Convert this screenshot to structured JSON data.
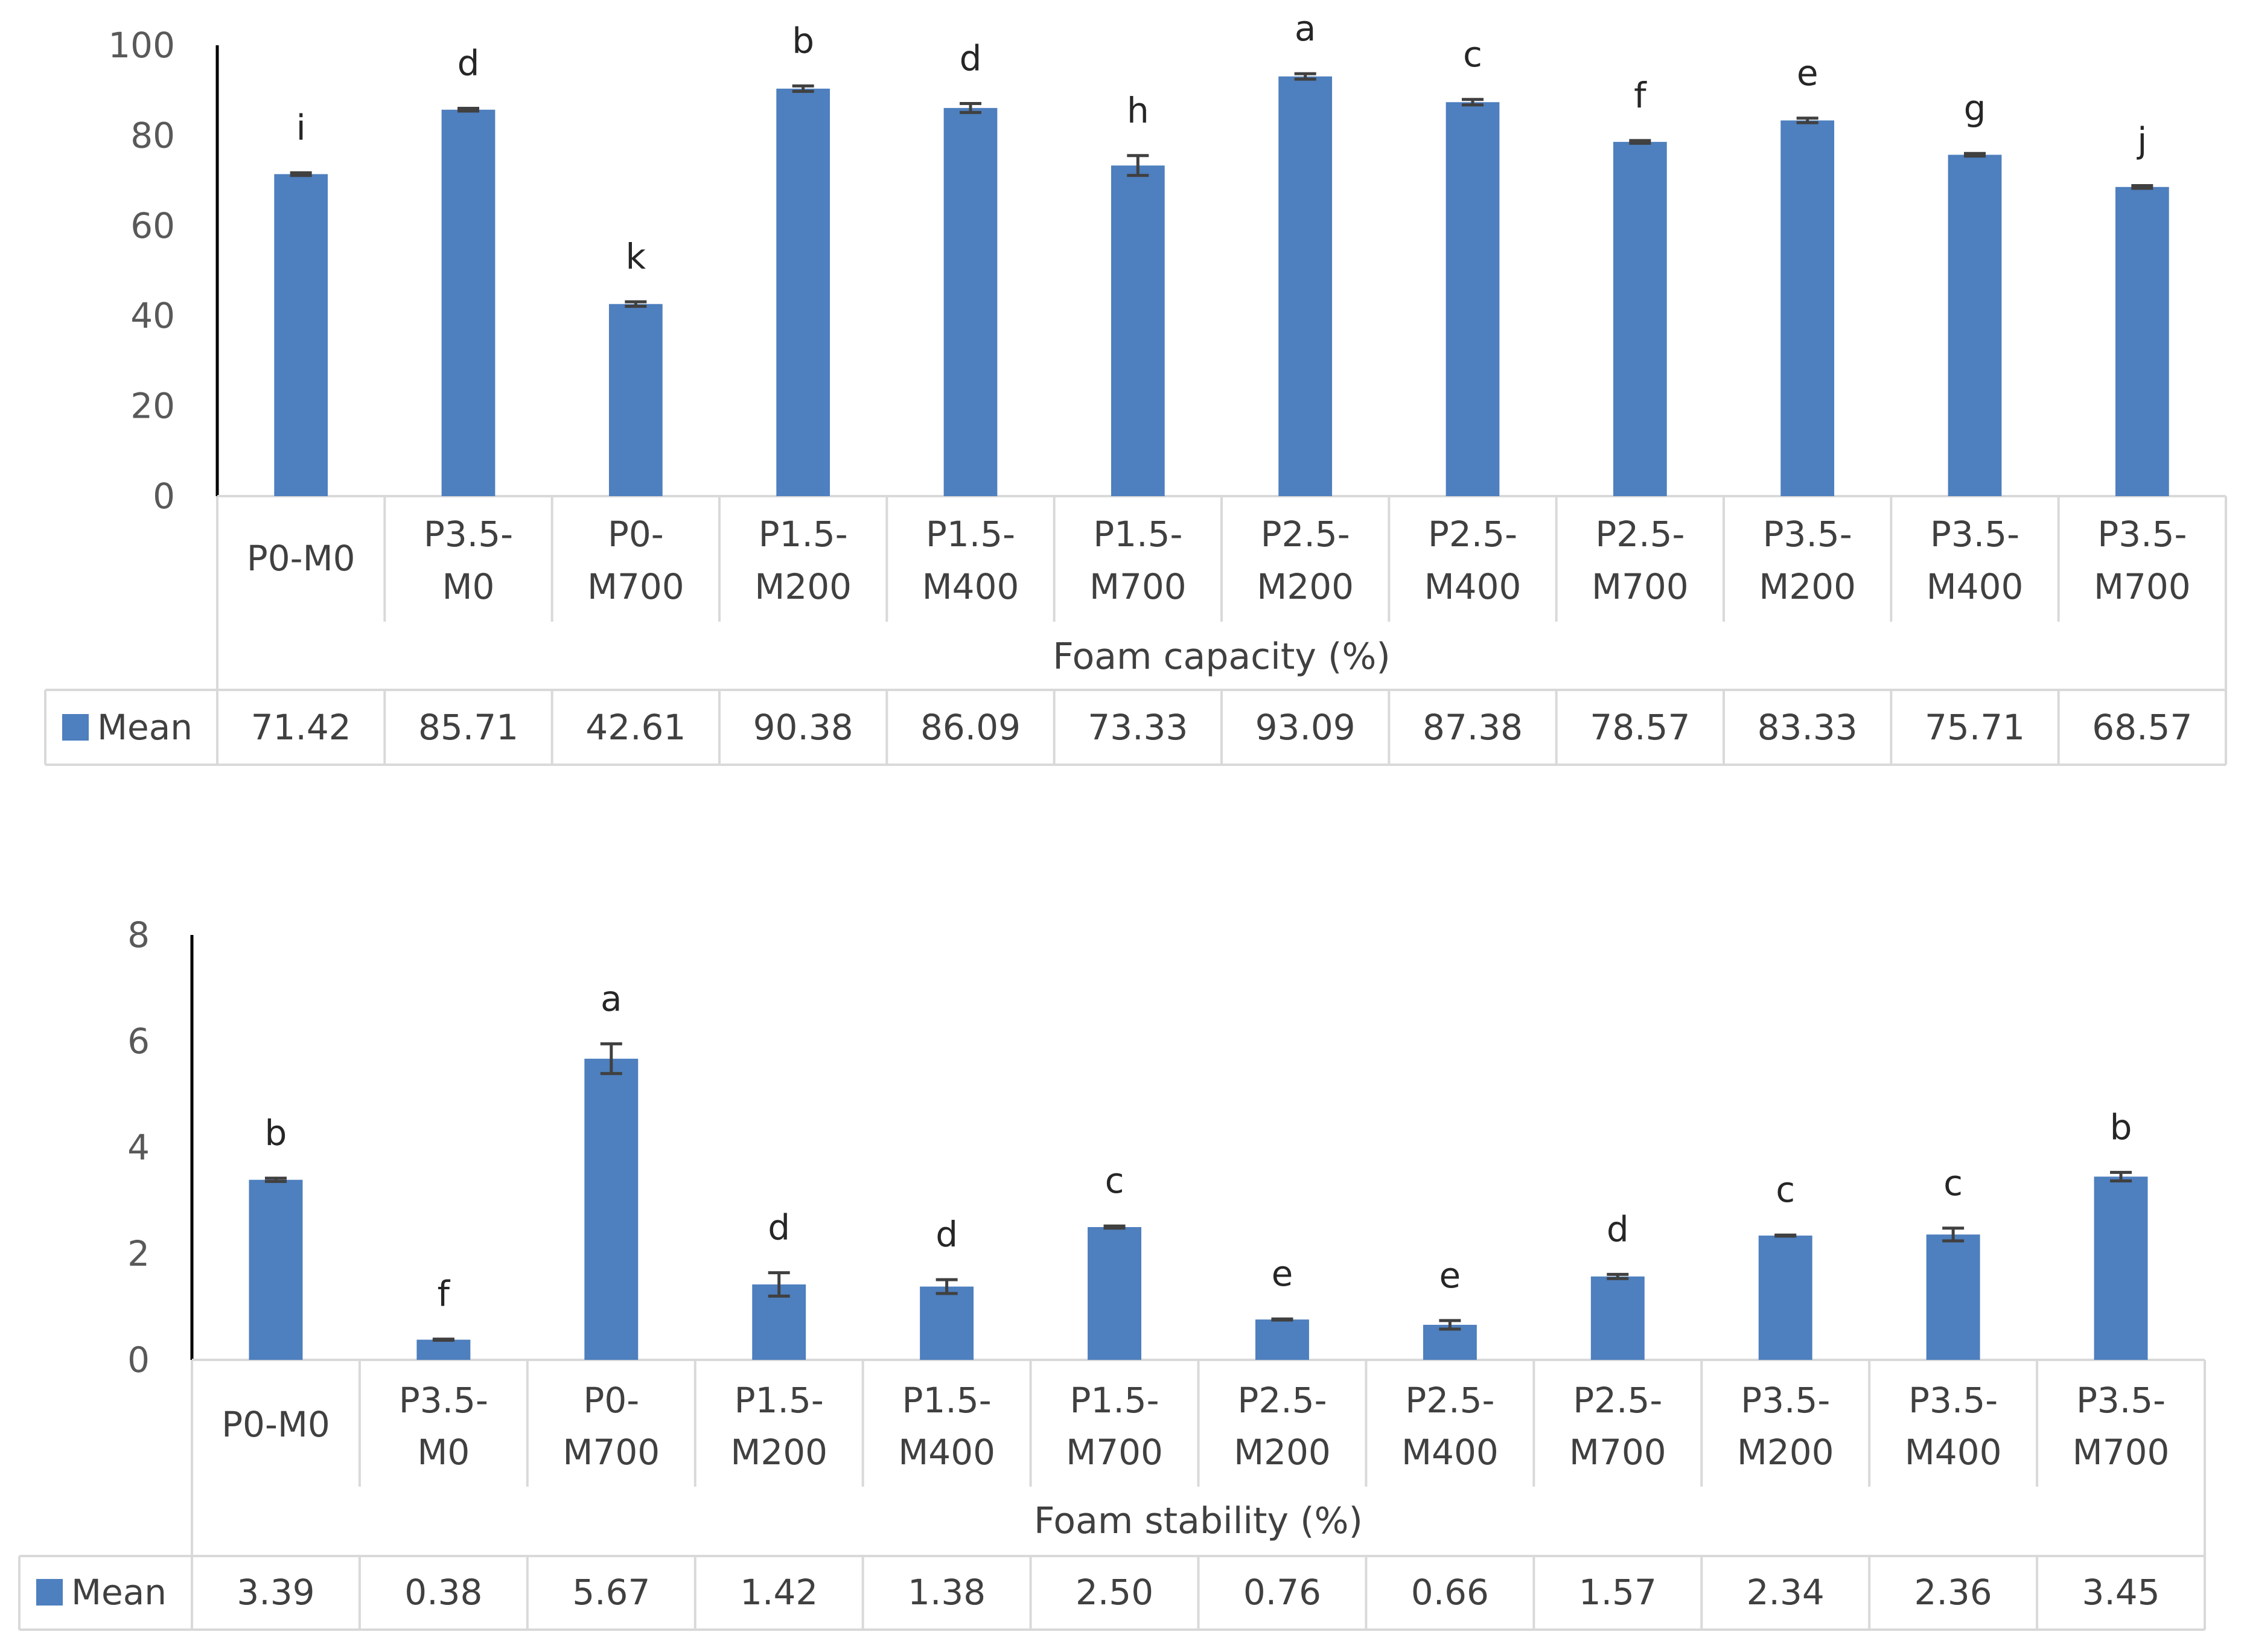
{
  "chart_data": [
    {
      "type": "bar",
      "title": "Foam capacity (%)",
      "xlabel": "Foam capacity (%)",
      "ylabel": "",
      "ylim": [
        0,
        100
      ],
      "yticks": [
        0,
        20,
        40,
        60,
        80,
        100
      ],
      "categories": [
        [
          "P0-M0"
        ],
        [
          "P3.5-",
          "M0"
        ],
        [
          "P0-",
          "M700"
        ],
        [
          "P1.5-",
          "M200"
        ],
        [
          "P1.5-",
          "M400"
        ],
        [
          "P1.5-",
          "M700"
        ],
        [
          "P2.5-",
          "M200"
        ],
        [
          "P2.5-",
          "M400"
        ],
        [
          "P2.5-",
          "M700"
        ],
        [
          "P3.5-",
          "M200"
        ],
        [
          "P3.5-",
          "M400"
        ],
        [
          "P3.5-",
          "M700"
        ]
      ],
      "series": [
        {
          "name": "Mean",
          "color": "#4e7fbe",
          "values": [
            71.42,
            85.71,
            42.61,
            90.38,
            86.09,
            73.33,
            93.09,
            87.38,
            78.57,
            83.33,
            75.71,
            68.57
          ],
          "value_labels": [
            "71.42",
            "85.71",
            "42.61",
            "90.38",
            "86.09",
            "73.33",
            "93.09",
            "87.38",
            "78.57",
            "83.33",
            "75.71",
            "68.57"
          ],
          "errors": [
            0.3,
            0.3,
            0.5,
            0.6,
            1.0,
            2.2,
            0.6,
            0.6,
            0.3,
            0.5,
            0.3,
            0.3
          ],
          "letters": [
            "i",
            "d",
            "k",
            "b",
            "d",
            "h",
            "a",
            "c",
            "f",
            "e",
            "g",
            "j"
          ]
        }
      ]
    },
    {
      "type": "bar",
      "title": "Foam stability (%)",
      "xlabel": "Foam stability (%)",
      "ylabel": "",
      "ylim": [
        0,
        8
      ],
      "yticks": [
        0,
        2,
        4,
        6,
        8
      ],
      "categories": [
        [
          "P0-M0"
        ],
        [
          "P3.5-",
          "M0"
        ],
        [
          "P0-",
          "M700"
        ],
        [
          "P1.5-",
          "M200"
        ],
        [
          "P1.5-",
          "M400"
        ],
        [
          "P1.5-",
          "M700"
        ],
        [
          "P2.5-",
          "M200"
        ],
        [
          "P2.5-",
          "M400"
        ],
        [
          "P2.5-",
          "M700"
        ],
        [
          "P3.5-",
          "M200"
        ],
        [
          "P3.5-",
          "M400"
        ],
        [
          "P3.5-",
          "M700"
        ]
      ],
      "series": [
        {
          "name": "Mean",
          "color": "#4e7fbe",
          "values": [
            3.39,
            0.38,
            5.67,
            1.42,
            1.38,
            2.5,
            0.76,
            0.66,
            1.57,
            2.34,
            2.36,
            3.45
          ],
          "value_labels": [
            "3.39",
            "0.38",
            "5.67",
            "1.42",
            "1.38",
            "2.50",
            "0.76",
            "0.66",
            "1.57",
            "2.34",
            "2.36",
            "3.45"
          ],
          "errors": [
            0.03,
            0.01,
            0.28,
            0.22,
            0.13,
            0.02,
            0.01,
            0.08,
            0.04,
            0.01,
            0.12,
            0.08
          ],
          "letters": [
            "b",
            "f",
            "a",
            "d",
            "d",
            "c",
            "e",
            "e",
            "d",
            "c",
            "c",
            "b"
          ]
        }
      ]
    }
  ]
}
